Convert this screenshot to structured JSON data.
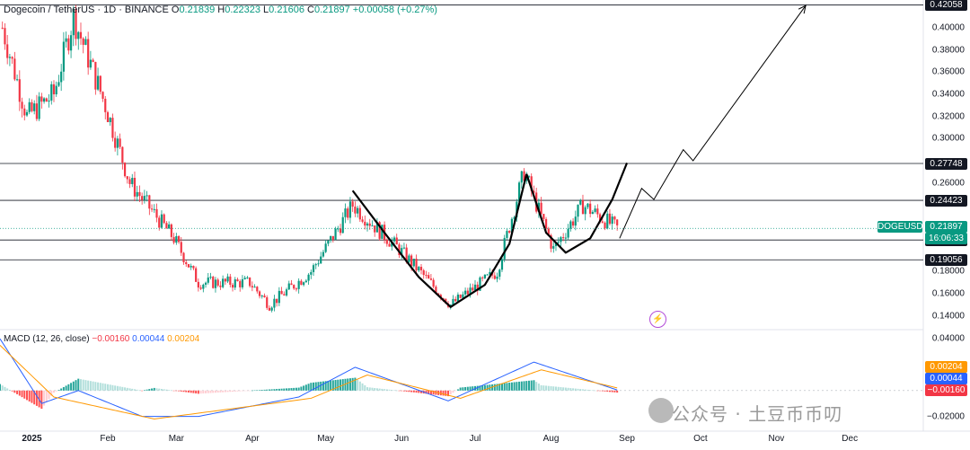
{
  "header": {
    "symbol": "Dogecoin / TetherUS · 1D · BINANCE",
    "open_label": "O",
    "open": "0.21839",
    "high_label": "H",
    "high": "0.22323",
    "low_label": "L",
    "low": "0.21606",
    "close_label": "C",
    "close": "0.21897",
    "change": "+0.00058 (+0.27%)"
  },
  "macd_header": {
    "label": "MACD (12, 26, close)",
    "v1": "−0.00160",
    "v2": "0.00044",
    "v3": "0.00204"
  },
  "levels": [
    {
      "label": "0.42058"
    },
    {
      "label": "0.27748"
    },
    {
      "label": "0.24423"
    },
    {
      "label": "0.20845"
    },
    {
      "label": "0.19056"
    }
  ],
  "symbol_tag": {
    "name": "DOGEUSDT",
    "price": "0.21897",
    "countdown": "16:06:33"
  },
  "price_ticks": [
    "0.40000",
    "0.38000",
    "0.36000",
    "0.34000",
    "0.32000",
    "0.30000",
    "0.26000",
    "0.18000",
    "0.16000",
    "0.14000"
  ],
  "macd_ticks": [
    "0.04000",
    "−0.02000"
  ],
  "macd_tags": [
    "0.00204",
    "0.00044",
    "−0.00160"
  ],
  "x_ticks": [
    "2025",
    "Feb",
    "Mar",
    "Apr",
    "May",
    "Jun",
    "Jul",
    "Aug",
    "Sep",
    "Oct",
    "Nov",
    "Dec"
  ],
  "colors": {
    "up": "#089981",
    "down": "#f23645",
    "macd": "#2962ff",
    "signal": "#ff9800",
    "level": "#131722"
  },
  "watermark": "公众号 · 土豆币币叨",
  "chart_data": [
    {
      "type": "candlestick",
      "title": "Dogecoin / TetherUS · 1D · BINANCE",
      "x_range": [
        "2024-12-19",
        "2025-12-31"
      ],
      "ylim": [
        0.13,
        0.425
      ],
      "monthly_path": [
        {
          "x": "2024-12-20",
          "y": 0.4
        },
        {
          "x": "2024-12-30",
          "y": 0.32
        },
        {
          "x": "2025-01-10",
          "y": 0.34
        },
        {
          "x": "2025-01-18",
          "y": 0.41
        },
        {
          "x": "2025-01-31",
          "y": 0.33
        },
        {
          "x": "2025-02-10",
          "y": 0.26
        },
        {
          "x": "2025-02-28",
          "y": 0.21
        },
        {
          "x": "2025-03-10",
          "y": 0.17
        },
        {
          "x": "2025-03-31",
          "y": 0.17
        },
        {
          "x": "2025-04-08",
          "y": 0.15
        },
        {
          "x": "2025-04-25",
          "y": 0.18
        },
        {
          "x": "2025-05-12",
          "y": 0.24
        },
        {
          "x": "2025-05-31",
          "y": 0.2
        },
        {
          "x": "2025-06-21",
          "y": 0.15
        },
        {
          "x": "2025-07-10",
          "y": 0.18
        },
        {
          "x": "2025-07-21",
          "y": 0.27
        },
        {
          "x": "2025-08-02",
          "y": 0.2
        },
        {
          "x": "2025-08-14",
          "y": 0.24
        },
        {
          "x": "2025-08-28",
          "y": 0.219
        }
      ],
      "horizontal_levels": [
        0.42058,
        0.27748,
        0.24423,
        0.20845,
        0.19056
      ],
      "last_price": 0.21897,
      "projection_path": [
        {
          "x": "2025-08-29",
          "y": 0.21
        },
        {
          "x": "2025-09-07",
          "y": 0.255
        },
        {
          "x": "2025-09-12",
          "y": 0.245
        },
        {
          "x": "2025-09-24",
          "y": 0.29
        },
        {
          "x": "2025-09-28",
          "y": 0.28
        },
        {
          "x": "2025-11-13",
          "y": 0.42
        }
      ]
    },
    {
      "type": "macd",
      "title": "MACD (12, 26, close)",
      "ylim": [
        -0.03,
        0.045
      ],
      "macd_line": [
        {
          "x": "2024-12-19",
          "y": 0.04
        },
        {
          "x": "2025-01-05",
          "y": -0.01
        },
        {
          "x": "2025-01-20",
          "y": 0.0
        },
        {
          "x": "2025-02-15",
          "y": -0.02
        },
        {
          "x": "2025-03-10",
          "y": -0.02
        },
        {
          "x": "2025-04-20",
          "y": -0.005
        },
        {
          "x": "2025-05-13",
          "y": 0.018
        },
        {
          "x": "2025-06-20",
          "y": -0.008
        },
        {
          "x": "2025-07-25",
          "y": 0.022
        },
        {
          "x": "2025-08-28",
          "y": 0.00044
        }
      ],
      "signal_line": [
        {
          "x": "2024-12-19",
          "y": 0.035
        },
        {
          "x": "2025-01-10",
          "y": -0.005
        },
        {
          "x": "2025-02-20",
          "y": -0.022
        },
        {
          "x": "2025-04-25",
          "y": -0.006
        },
        {
          "x": "2025-05-18",
          "y": 0.012
        },
        {
          "x": "2025-06-25",
          "y": -0.006
        },
        {
          "x": "2025-07-28",
          "y": 0.016
        },
        {
          "x": "2025-08-28",
          "y": 0.00204
        }
      ],
      "last_histogram": -0.0016
    }
  ]
}
